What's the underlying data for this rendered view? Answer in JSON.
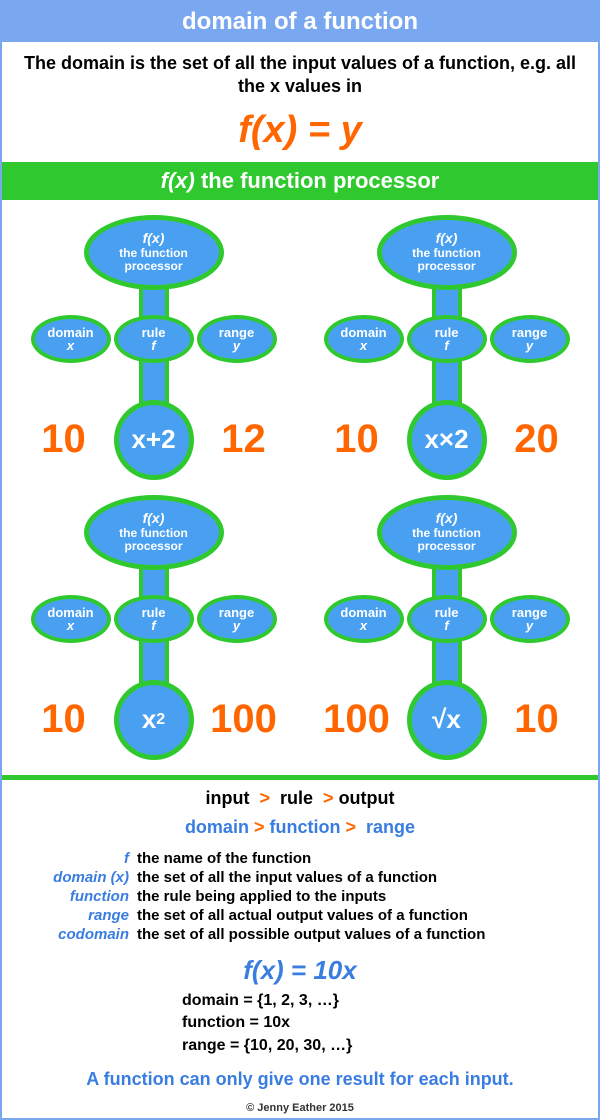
{
  "title": "domain of a function",
  "intro": "The domain is the set of all the input values of a function, e.g. all the x values in",
  "main_formula": "f(x) = y",
  "green_bar_fx": "f(x)",
  "green_bar_text": " the function processor",
  "processor_label_fx": "f(x)",
  "processor_label_line1": "the function",
  "processor_label_line2": "processor",
  "domain_label": "domain",
  "domain_sub": "x",
  "rule_label": "rule",
  "rule_sub": "f",
  "range_label": "range",
  "range_sub": "y",
  "units": [
    {
      "input": "10",
      "rule_html": "x+2",
      "output": "12"
    },
    {
      "input": "10",
      "rule_html": "x×2",
      "output": "20"
    },
    {
      "input": "10",
      "rule_html": "x<sup style='font-size:16px'>2</sup>",
      "output": "100"
    },
    {
      "input": "100",
      "rule_html": "√x",
      "output": "10"
    }
  ],
  "flow1_parts": [
    "input",
    ">",
    "rule",
    ">",
    "output"
  ],
  "flow2_parts": [
    "domain",
    ">",
    "function",
    ">",
    "range"
  ],
  "definitions": [
    {
      "term": "f",
      "desc": "the name of the function"
    },
    {
      "term": "domain (x)",
      "desc": "the set of all the input values of a function"
    },
    {
      "term": "function",
      "desc": "the rule being applied to the inputs"
    },
    {
      "term": "range",
      "desc": "the set of all actual output values of a function"
    },
    {
      "term": "codomain",
      "desc": "the set of all possible output values of a function"
    }
  ],
  "formula2": "f(x) = 10x",
  "example": {
    "domain": "domain  = {1, 2, 3, …}",
    "function": "function = 10x",
    "range": "range     = {10, 20, 30, …}"
  },
  "conclusion": "A function can only give one result for each input.",
  "copyright": "© Jenny Eather 2015",
  "colors": {
    "title_bg": "#7aa8f0",
    "green": "#2fc92f",
    "blue": "#4aa0f0",
    "orange": "#ff6600",
    "link_blue": "#3a7de0"
  }
}
